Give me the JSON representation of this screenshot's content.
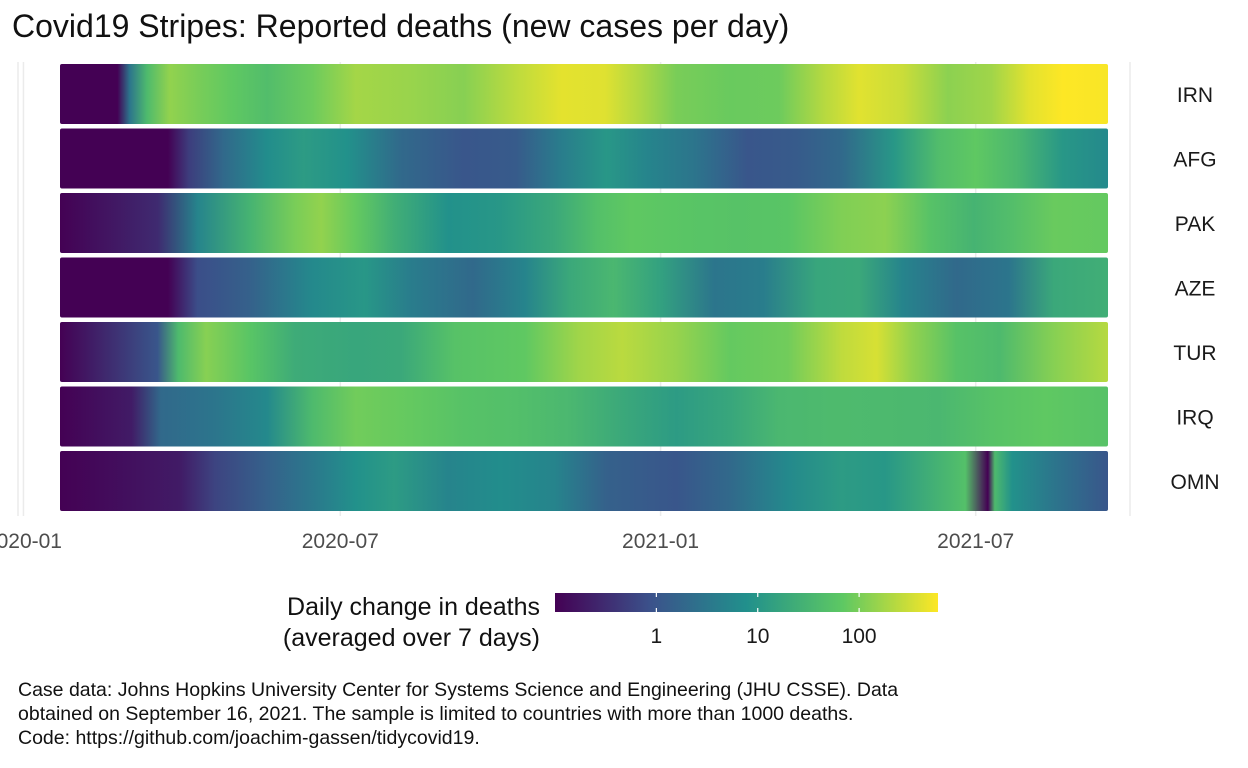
{
  "chart_data": {
    "type": "heatmap",
    "title": "Covid19 Stripes: Reported deaths (new cases per day)",
    "x_ticks": [
      {
        "date": "2020-01-01",
        "label": "2020-01"
      },
      {
        "date": "2020-07-01",
        "label": "2020-07"
      },
      {
        "date": "2021-01-01",
        "label": "2021-01"
      },
      {
        "date": "2021-07-01",
        "label": "2021-07"
      }
    ],
    "x_range": [
      "2020-01-22",
      "2021-09-15"
    ],
    "color_scale": {
      "palette": "viridis",
      "scale": "log10",
      "domain": [
        0.1,
        600
      ],
      "breaks": [
        1,
        10,
        100
      ],
      "break_labels": [
        "1",
        "10",
        "100"
      ],
      "colors": [
        "#440154",
        "#3b528b",
        "#21908c",
        "#5dc863",
        "#fde725"
      ],
      "title_line1": "Daily change in deaths",
      "title_line2": "(averaged over 7 days)"
    },
    "grid": true,
    "legend_position": "bottom",
    "series": [
      {
        "name": "IRN",
        "segments": [
          {
            "date": "2020-01-22",
            "value": 0
          },
          {
            "date": "2020-02-24",
            "value": 0.05
          },
          {
            "date": "2020-03-02",
            "value": 3
          },
          {
            "date": "2020-03-12",
            "value": 40
          },
          {
            "date": "2020-03-25",
            "value": 140
          },
          {
            "date": "2020-04-10",
            "value": 100
          },
          {
            "date": "2020-04-30",
            "value": 70
          },
          {
            "date": "2020-05-20",
            "value": 45
          },
          {
            "date": "2020-06-15",
            "value": 85
          },
          {
            "date": "2020-07-10",
            "value": 180
          },
          {
            "date": "2020-08-10",
            "value": 155
          },
          {
            "date": "2020-09-10",
            "value": 120
          },
          {
            "date": "2020-10-10",
            "value": 250
          },
          {
            "date": "2020-11-05",
            "value": 430
          },
          {
            "date": "2020-11-30",
            "value": 400
          },
          {
            "date": "2020-12-20",
            "value": 210
          },
          {
            "date": "2021-01-10",
            "value": 100
          },
          {
            "date": "2021-02-10",
            "value": 80
          },
          {
            "date": "2021-03-10",
            "value": 85
          },
          {
            "date": "2021-04-05",
            "value": 230
          },
          {
            "date": "2021-04-25",
            "value": 410
          },
          {
            "date": "2021-05-20",
            "value": 300
          },
          {
            "date": "2021-06-15",
            "value": 130
          },
          {
            "date": "2021-07-10",
            "value": 170
          },
          {
            "date": "2021-08-01",
            "value": 420
          },
          {
            "date": "2021-08-20",
            "value": 600
          },
          {
            "date": "2021-09-15",
            "value": 560
          }
        ]
      },
      {
        "name": "AFG",
        "segments": [
          {
            "date": "2020-01-22",
            "value": 0
          },
          {
            "date": "2020-03-24",
            "value": 0.05
          },
          {
            "date": "2020-04-05",
            "value": 0.5
          },
          {
            "date": "2020-04-25",
            "value": 2
          },
          {
            "date": "2020-05-20",
            "value": 7
          },
          {
            "date": "2020-06-10",
            "value": 12
          },
          {
            "date": "2020-07-05",
            "value": 8
          },
          {
            "date": "2020-08-05",
            "value": 2
          },
          {
            "date": "2020-09-10",
            "value": 1
          },
          {
            "date": "2020-10-10",
            "value": 1.2
          },
          {
            "date": "2020-11-05",
            "value": 4
          },
          {
            "date": "2020-12-01",
            "value": 10
          },
          {
            "date": "2020-12-25",
            "value": 5
          },
          {
            "date": "2021-01-20",
            "value": 3
          },
          {
            "date": "2021-02-20",
            "value": 1
          },
          {
            "date": "2021-03-20",
            "value": 1.2
          },
          {
            "date": "2021-04-15",
            "value": 2
          },
          {
            "date": "2021-05-15",
            "value": 10
          },
          {
            "date": "2021-06-10",
            "value": 45
          },
          {
            "date": "2021-07-01",
            "value": 70
          },
          {
            "date": "2021-07-25",
            "value": 35
          },
          {
            "date": "2021-08-20",
            "value": 10
          },
          {
            "date": "2021-09-15",
            "value": 6
          }
        ]
      },
      {
        "name": "PAK",
        "segments": [
          {
            "date": "2020-01-22",
            "value": 0
          },
          {
            "date": "2020-03-18",
            "value": 0.3
          },
          {
            "date": "2020-04-10",
            "value": 5
          },
          {
            "date": "2020-05-10",
            "value": 30
          },
          {
            "date": "2020-06-05",
            "value": 100
          },
          {
            "date": "2020-06-20",
            "value": 140
          },
          {
            "date": "2020-07-10",
            "value": 75
          },
          {
            "date": "2020-08-01",
            "value": 25
          },
          {
            "date": "2020-09-01",
            "value": 8
          },
          {
            "date": "2020-10-01",
            "value": 10
          },
          {
            "date": "2020-11-01",
            "value": 20
          },
          {
            "date": "2020-11-26",
            "value": 50
          },
          {
            "date": "2020-12-15",
            "value": 70
          },
          {
            "date": "2021-01-15",
            "value": 60
          },
          {
            "date": "2021-02-15",
            "value": 55
          },
          {
            "date": "2021-03-15",
            "value": 60
          },
          {
            "date": "2021-04-15",
            "value": 110
          },
          {
            "date": "2021-05-10",
            "value": 130
          },
          {
            "date": "2021-06-05",
            "value": 55
          },
          {
            "date": "2021-06-30",
            "value": 30
          },
          {
            "date": "2021-07-20",
            "value": 45
          },
          {
            "date": "2021-08-15",
            "value": 80
          },
          {
            "date": "2021-09-15",
            "value": 75
          }
        ]
      },
      {
        "name": "AZE",
        "segments": [
          {
            "date": "2020-01-22",
            "value": 0
          },
          {
            "date": "2020-03-24",
            "value": 0.1
          },
          {
            "date": "2020-04-10",
            "value": 0.8
          },
          {
            "date": "2020-05-10",
            "value": 1.5
          },
          {
            "date": "2020-06-15",
            "value": 6
          },
          {
            "date": "2020-07-15",
            "value": 10
          },
          {
            "date": "2020-08-10",
            "value": 4
          },
          {
            "date": "2020-09-15",
            "value": 2
          },
          {
            "date": "2020-10-15",
            "value": 5
          },
          {
            "date": "2020-11-10",
            "value": 20
          },
          {
            "date": "2020-12-05",
            "value": 35
          },
          {
            "date": "2021-01-01",
            "value": 15
          },
          {
            "date": "2021-02-01",
            "value": 3
          },
          {
            "date": "2021-03-01",
            "value": 4
          },
          {
            "date": "2021-04-01",
            "value": 18
          },
          {
            "date": "2021-04-25",
            "value": 20
          },
          {
            "date": "2021-05-20",
            "value": 5
          },
          {
            "date": "2021-06-20",
            "value": 2
          },
          {
            "date": "2021-07-20",
            "value": 3
          },
          {
            "date": "2021-08-15",
            "value": 20
          },
          {
            "date": "2021-09-15",
            "value": 25
          }
        ]
      },
      {
        "name": "TUR",
        "segments": [
          {
            "date": "2020-01-22",
            "value": 0
          },
          {
            "date": "2020-03-18",
            "value": 1
          },
          {
            "date": "2020-03-30",
            "value": 40
          },
          {
            "date": "2020-04-15",
            "value": 120
          },
          {
            "date": "2020-05-10",
            "value": 60
          },
          {
            "date": "2020-06-05",
            "value": 22
          },
          {
            "date": "2020-07-10",
            "value": 18
          },
          {
            "date": "2020-08-05",
            "value": 20
          },
          {
            "date": "2020-09-05",
            "value": 55
          },
          {
            "date": "2020-10-15",
            "value": 70
          },
          {
            "date": "2020-11-15",
            "value": 170
          },
          {
            "date": "2020-12-10",
            "value": 240
          },
          {
            "date": "2021-01-10",
            "value": 150
          },
          {
            "date": "2021-02-10",
            "value": 75
          },
          {
            "date": "2021-03-15",
            "value": 90
          },
          {
            "date": "2021-04-15",
            "value": 260
          },
          {
            "date": "2021-05-05",
            "value": 360
          },
          {
            "date": "2021-05-25",
            "value": 140
          },
          {
            "date": "2021-06-20",
            "value": 55
          },
          {
            "date": "2021-07-15",
            "value": 40
          },
          {
            "date": "2021-08-15",
            "value": 120
          },
          {
            "date": "2021-09-15",
            "value": 230
          }
        ]
      },
      {
        "name": "IRQ",
        "segments": [
          {
            "date": "2020-01-22",
            "value": 0
          },
          {
            "date": "2020-03-03",
            "value": 0.2
          },
          {
            "date": "2020-03-20",
            "value": 2
          },
          {
            "date": "2020-04-20",
            "value": 3
          },
          {
            "date": "2020-05-20",
            "value": 6
          },
          {
            "date": "2020-06-15",
            "value": 40
          },
          {
            "date": "2020-07-10",
            "value": 90
          },
          {
            "date": "2020-08-10",
            "value": 75
          },
          {
            "date": "2020-09-10",
            "value": 55
          },
          {
            "date": "2020-10-10",
            "value": 48
          },
          {
            "date": "2020-11-10",
            "value": 35
          },
          {
            "date": "2020-12-10",
            "value": 20
          },
          {
            "date": "2021-01-10",
            "value": 12
          },
          {
            "date": "2021-02-10",
            "value": 18
          },
          {
            "date": "2021-03-10",
            "value": 35
          },
          {
            "date": "2021-04-10",
            "value": 40
          },
          {
            "date": "2021-05-10",
            "value": 38
          },
          {
            "date": "2021-06-10",
            "value": 35
          },
          {
            "date": "2021-07-10",
            "value": 55
          },
          {
            "date": "2021-08-10",
            "value": 70
          },
          {
            "date": "2021-09-15",
            "value": 55
          }
        ]
      },
      {
        "name": "OMN",
        "segments": [
          {
            "date": "2020-01-22",
            "value": 0
          },
          {
            "date": "2020-03-31",
            "value": 0.2
          },
          {
            "date": "2020-04-20",
            "value": 0.6
          },
          {
            "date": "2020-05-20",
            "value": 1.5
          },
          {
            "date": "2020-06-20",
            "value": 4
          },
          {
            "date": "2020-07-10",
            "value": 8
          },
          {
            "date": "2020-08-01",
            "value": 12
          },
          {
            "date": "2020-09-01",
            "value": 5
          },
          {
            "date": "2020-10-01",
            "value": 7
          },
          {
            "date": "2020-11-01",
            "value": 5
          },
          {
            "date": "2020-12-01",
            "value": 1.5
          },
          {
            "date": "2021-01-10",
            "value": 1
          },
          {
            "date": "2021-02-10",
            "value": 2
          },
          {
            "date": "2021-03-15",
            "value": 6
          },
          {
            "date": "2021-04-15",
            "value": 12
          },
          {
            "date": "2021-05-10",
            "value": 10
          },
          {
            "date": "2021-06-05",
            "value": 25
          },
          {
            "date": "2021-06-25",
            "value": 50
          },
          {
            "date": "2021-07-08",
            "value": 0.1
          },
          {
            "date": "2021-07-12",
            "value": 40
          },
          {
            "date": "2021-07-22",
            "value": 8
          },
          {
            "date": "2021-08-15",
            "value": 3
          },
          {
            "date": "2021-09-15",
            "value": 1
          }
        ]
      }
    ]
  },
  "caption": {
    "line1": "Case data: Johns Hopkins University Center for Systems Science and Engineering (JHU CSSE). Data",
    "line2": "obtained on September 16, 2021. The sample is limited to countries with more than 1000 deaths.",
    "line3": "Code: https://github.com/joachim-gassen/tidycovid19."
  }
}
